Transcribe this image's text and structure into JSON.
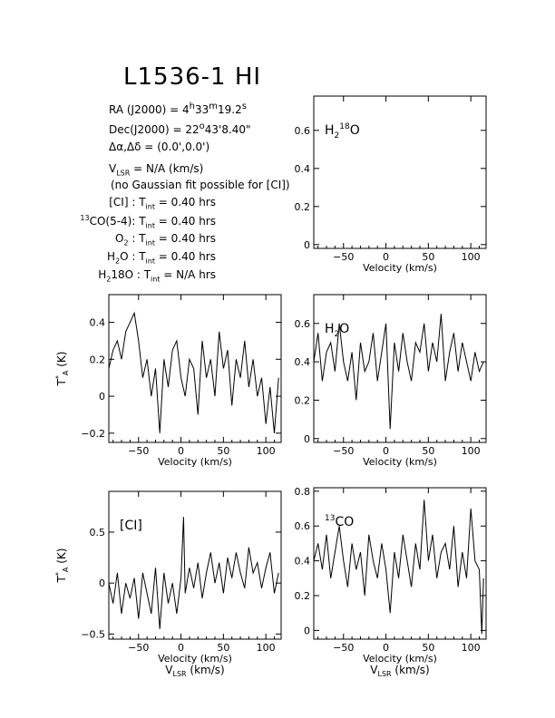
{
  "title": "L1536-1 HI",
  "info": {
    "ra_label": "RA (J2000) =",
    "ra_h": "4",
    "ra_m": "33",
    "ra_s": "19.2",
    "dec_label": "Dec(J2000) =",
    "dec_d": "22",
    "dec_rest": "43'8.40\"",
    "offset_label": "Δα,Δδ =",
    "offset_value": "(0.0',0.0')",
    "vlsr_label": "V",
    "vlsr_sub": "LSR",
    "vlsr_value": "= N/A  (km/s)",
    "note": "(no Gaussian fit possible for [CI])",
    "tint_lines": [
      {
        "pre": "",
        "species": "[CI]",
        "sub": "",
        "mid": " : ",
        "value": "= 0.40 hrs"
      },
      {
        "pre": "13",
        "species": "CO(5-4)",
        "sub": "",
        "mid": ": ",
        "value": "= 0.40 hrs"
      },
      {
        "pre": "",
        "species": "O",
        "sub": "2",
        "mid": " : ",
        "value": "= 0.40 hrs"
      },
      {
        "pre": "",
        "species": "H",
        "sub": "2",
        "mid": "O : ",
        "value": "= 0.40 hrs"
      },
      {
        "pre": "",
        "species": "H",
        "sub": "2",
        "mid": "18O : ",
        "value": "= N/A  hrs"
      }
    ],
    "tint_label": "T",
    "tint_sub": "int"
  },
  "colors": {
    "line": "#000000",
    "background": "#ffffff"
  },
  "chart_data": [
    {
      "id": "h218o",
      "type": "line",
      "label": "H2 18O",
      "xlabel": "Velocity (km/s)",
      "ylabel": "",
      "xlim": [
        -85,
        118
      ],
      "ylim": [
        -0.02,
        0.78
      ],
      "xticks": [
        -50,
        0,
        50,
        100
      ],
      "yticks": [
        0,
        0.2,
        0.4,
        0.6
      ],
      "ytick_labels": [
        "0",
        "0.2",
        "0.4",
        "0.6"
      ],
      "series": []
    },
    {
      "id": "o2",
      "type": "line",
      "label": "",
      "xlabel": "Velocity (km/s)",
      "ylabel": "T*A (K)",
      "xlim": [
        -85,
        118
      ],
      "ylim": [
        -0.25,
        0.55
      ],
      "xticks": [
        -50,
        0,
        50,
        100
      ],
      "yticks": [
        -0.2,
        0,
        0.2,
        0.4
      ],
      "ytick_labels": [
        "−0.2",
        "0",
        "0.2",
        "0.4"
      ],
      "series": [
        {
          "x": [
            -85,
            -80,
            -75,
            -70,
            -65,
            -60,
            -55,
            -50,
            -45,
            -40,
            -35,
            -30,
            -25,
            -20,
            -15,
            -10,
            -5,
            0,
            5,
            10,
            15,
            20,
            25,
            30,
            35,
            40,
            45,
            50,
            55,
            60,
            65,
            70,
            75,
            80,
            85,
            90,
            95,
            100,
            105,
            110,
            115
          ],
          "y": [
            0.15,
            0.25,
            0.3,
            0.2,
            0.35,
            0.4,
            0.45,
            0.3,
            0.1,
            0.2,
            0.0,
            0.15,
            -0.2,
            0.2,
            0.05,
            0.25,
            0.3,
            0.1,
            0.0,
            0.2,
            0.15,
            -0.1,
            0.3,
            0.1,
            0.2,
            0.0,
            0.35,
            0.15,
            0.25,
            -0.05,
            0.2,
            0.1,
            0.3,
            0.05,
            0.2,
            0.0,
            0.1,
            -0.15,
            0.05,
            -0.2,
            0.1
          ]
        }
      ]
    },
    {
      "id": "h2o",
      "type": "line",
      "label": "H2O",
      "xlabel": "Velocity (km/s)",
      "ylabel": "",
      "xlim": [
        -85,
        118
      ],
      "ylim": [
        -0.02,
        0.75
      ],
      "xticks": [
        -50,
        0,
        50,
        100
      ],
      "yticks": [
        0,
        0.2,
        0.4,
        0.6
      ],
      "ytick_labels": [
        "0",
        "0.2",
        "0.4",
        "0.6"
      ],
      "series": [
        {
          "x": [
            -85,
            -80,
            -75,
            -70,
            -65,
            -60,
            -55,
            -50,
            -45,
            -40,
            -35,
            -30,
            -25,
            -20,
            -15,
            -10,
            -5,
            0,
            5,
            10,
            15,
            20,
            25,
            30,
            35,
            40,
            45,
            50,
            55,
            60,
            65,
            70,
            75,
            80,
            85,
            90,
            95,
            100,
            105,
            110,
            115
          ],
          "y": [
            0.4,
            0.55,
            0.3,
            0.45,
            0.5,
            0.35,
            0.6,
            0.4,
            0.3,
            0.45,
            0.2,
            0.5,
            0.35,
            0.4,
            0.55,
            0.3,
            0.45,
            0.6,
            0.05,
            0.5,
            0.35,
            0.55,
            0.4,
            0.3,
            0.5,
            0.45,
            0.6,
            0.35,
            0.5,
            0.4,
            0.65,
            0.3,
            0.45,
            0.55,
            0.35,
            0.5,
            0.4,
            0.3,
            0.45,
            0.35,
            0.4
          ]
        }
      ]
    },
    {
      "id": "ci",
      "type": "line",
      "label": "[CI]",
      "xlabel": "Velocity (km/s)",
      "xlabel2": "VLSR (km/s)",
      "ylabel": "T*A (K)",
      "xlim": [
        -85,
        118
      ],
      "ylim": [
        -0.55,
        0.9
      ],
      "xticks": [
        -50,
        0,
        50,
        100
      ],
      "yticks": [
        -0.5,
        0,
        0.5
      ],
      "ytick_labels": [
        "−0.5",
        "0",
        "0.5"
      ],
      "series": [
        {
          "x": [
            -85,
            -80,
            -75,
            -70,
            -65,
            -60,
            -55,
            -50,
            -45,
            -40,
            -35,
            -30,
            -25,
            -20,
            -15,
            -10,
            -5,
            0,
            3,
            5,
            10,
            15,
            20,
            25,
            30,
            35,
            40,
            45,
            50,
            55,
            60,
            65,
            70,
            75,
            80,
            85,
            90,
            95,
            100,
            105,
            110,
            115
          ],
          "y": [
            0.0,
            -0.2,
            0.1,
            -0.3,
            0.0,
            -0.15,
            0.05,
            -0.35,
            0.1,
            -0.1,
            -0.3,
            0.15,
            -0.45,
            0.1,
            -0.2,
            0.0,
            -0.3,
            0.05,
            0.65,
            -0.1,
            0.15,
            -0.05,
            0.2,
            -0.15,
            0.1,
            0.3,
            0.0,
            0.2,
            -0.1,
            0.25,
            0.05,
            0.3,
            0.1,
            -0.05,
            0.35,
            0.1,
            0.2,
            -0.05,
            0.15,
            0.3,
            -0.1,
            0.1
          ]
        }
      ]
    },
    {
      "id": "13co",
      "type": "line",
      "label": "13CO",
      "xlabel": "Velocity (km/s)",
      "xlabel2": "VLSR (km/s)",
      "ylabel": "",
      "xlim": [
        -85,
        118
      ],
      "ylim": [
        -0.05,
        0.82
      ],
      "xticks": [
        -50,
        0,
        50,
        100
      ],
      "yticks": [
        0,
        0.2,
        0.4,
        0.6,
        0.8
      ],
      "ytick_labels": [
        "0",
        "0.2",
        "0.4",
        "0.6",
        "0.8"
      ],
      "series": [
        {
          "x": [
            -85,
            -80,
            -75,
            -70,
            -65,
            -60,
            -55,
            -50,
            -45,
            -40,
            -35,
            -30,
            -25,
            -20,
            -15,
            -10,
            -5,
            0,
            5,
            10,
            15,
            20,
            25,
            30,
            35,
            40,
            45,
            50,
            55,
            60,
            65,
            70,
            75,
            80,
            85,
            90,
            95,
            100,
            105,
            110,
            113,
            115
          ],
          "y": [
            0.4,
            0.5,
            0.35,
            0.55,
            0.3,
            0.45,
            0.6,
            0.4,
            0.25,
            0.5,
            0.35,
            0.45,
            0.2,
            0.55,
            0.4,
            0.3,
            0.5,
            0.35,
            0.1,
            0.45,
            0.3,
            0.55,
            0.4,
            0.25,
            0.5,
            0.35,
            0.75,
            0.4,
            0.55,
            0.3,
            0.45,
            0.5,
            0.35,
            0.6,
            0.25,
            0.45,
            0.3,
            0.7,
            0.4,
            0.35,
            -0.02,
            0.3
          ]
        }
      ]
    }
  ]
}
